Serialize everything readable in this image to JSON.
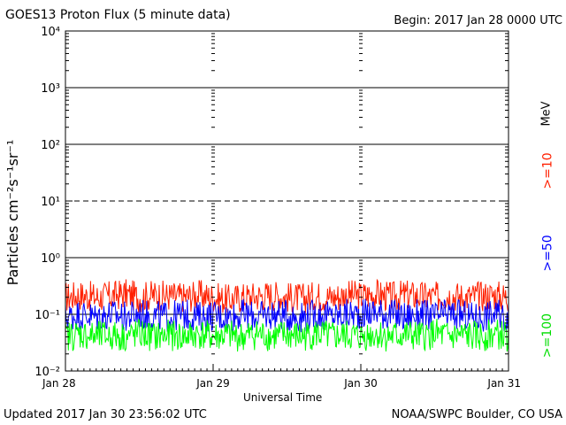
{
  "header": {
    "title": "GOES13 Proton Flux (5 minute data)",
    "begin": "Begin: 2017 Jan 28 0000 UTC"
  },
  "footer": {
    "updated": "Updated 2017 Jan 30 23:56:02 UTC",
    "credit": "NOAA/SWPC Boulder, CO USA"
  },
  "chart_data": {
    "type": "line",
    "title": "GOES13 Proton Flux (5 minute data)",
    "xlabel": "Universal Time",
    "ylabel": "Particles cm⁻²s⁻¹sr⁻¹",
    "yscale": "log",
    "ylim": [
      0.01,
      10000
    ],
    "ytick_labels": [
      "10⁻²",
      "10⁻¹",
      "10⁰",
      "10¹",
      "10²",
      "10³",
      "10⁴"
    ],
    "xtick_labels": [
      "Jan 28",
      "Jan 29",
      "Jan 30",
      "Jan 31"
    ],
    "xlim_days": [
      0,
      3
    ],
    "grid": "horizontal at decades; dashed at 10¹",
    "units_label": "MeV",
    "series": [
      {
        "name": ">=10",
        "color": "#ff2000",
        "x": [
          0,
          0.1,
          0.2,
          0.3,
          0.4,
          0.5,
          0.6,
          0.7,
          0.8,
          0.9,
          1.0,
          1.1,
          1.2,
          1.3,
          1.4,
          1.5,
          1.6,
          1.7,
          1.8,
          1.9,
          2.0,
          2.1,
          2.2,
          2.3,
          2.4,
          2.5,
          2.6,
          2.7,
          2.8,
          2.9,
          3.0
        ],
        "y": [
          0.2,
          0.22,
          0.2,
          0.21,
          0.23,
          0.2,
          0.22,
          0.21,
          0.2,
          0.22,
          0.2,
          0.18,
          0.2,
          0.21,
          0.22,
          0.2,
          0.19,
          0.21,
          0.2,
          0.22,
          0.21,
          0.23,
          0.2,
          0.22,
          0.21,
          0.2,
          0.22,
          0.2,
          0.21,
          0.22,
          0.2
        ]
      },
      {
        "name": ">=50",
        "color": "#0000ff",
        "x": [
          0,
          0.1,
          0.2,
          0.3,
          0.4,
          0.5,
          0.6,
          0.7,
          0.8,
          0.9,
          1.0,
          1.1,
          1.2,
          1.3,
          1.4,
          1.5,
          1.6,
          1.7,
          1.8,
          1.9,
          2.0,
          2.1,
          2.2,
          2.3,
          2.4,
          2.5,
          2.6,
          2.7,
          2.8,
          2.9,
          3.0
        ],
        "y": [
          0.09,
          0.1,
          0.09,
          0.1,
          0.09,
          0.1,
          0.095,
          0.09,
          0.1,
          0.09,
          0.095,
          0.09,
          0.1,
          0.09,
          0.1,
          0.095,
          0.09,
          0.1,
          0.09,
          0.1,
          0.1,
          0.11,
          0.1,
          0.09,
          0.1,
          0.09,
          0.1,
          0.095,
          0.09,
          0.1,
          0.09
        ]
      },
      {
        "name": ">=100",
        "color": "#00ff00",
        "x": [
          0,
          0.1,
          0.2,
          0.3,
          0.4,
          0.5,
          0.6,
          0.7,
          0.8,
          0.9,
          1.0,
          1.1,
          1.2,
          1.3,
          1.4,
          1.5,
          1.6,
          1.7,
          1.8,
          1.9,
          2.0,
          2.1,
          2.2,
          2.3,
          2.4,
          2.5,
          2.6,
          2.7,
          2.8,
          2.9,
          3.0
        ],
        "y": [
          0.04,
          0.045,
          0.04,
          0.042,
          0.04,
          0.045,
          0.04,
          0.043,
          0.04,
          0.045,
          0.04,
          0.042,
          0.04,
          0.045,
          0.04,
          0.043,
          0.04,
          0.045,
          0.04,
          0.042,
          0.04,
          0.045,
          0.04,
          0.043,
          0.04,
          0.045,
          0.04,
          0.042,
          0.04,
          0.045,
          0.04
        ]
      }
    ]
  }
}
